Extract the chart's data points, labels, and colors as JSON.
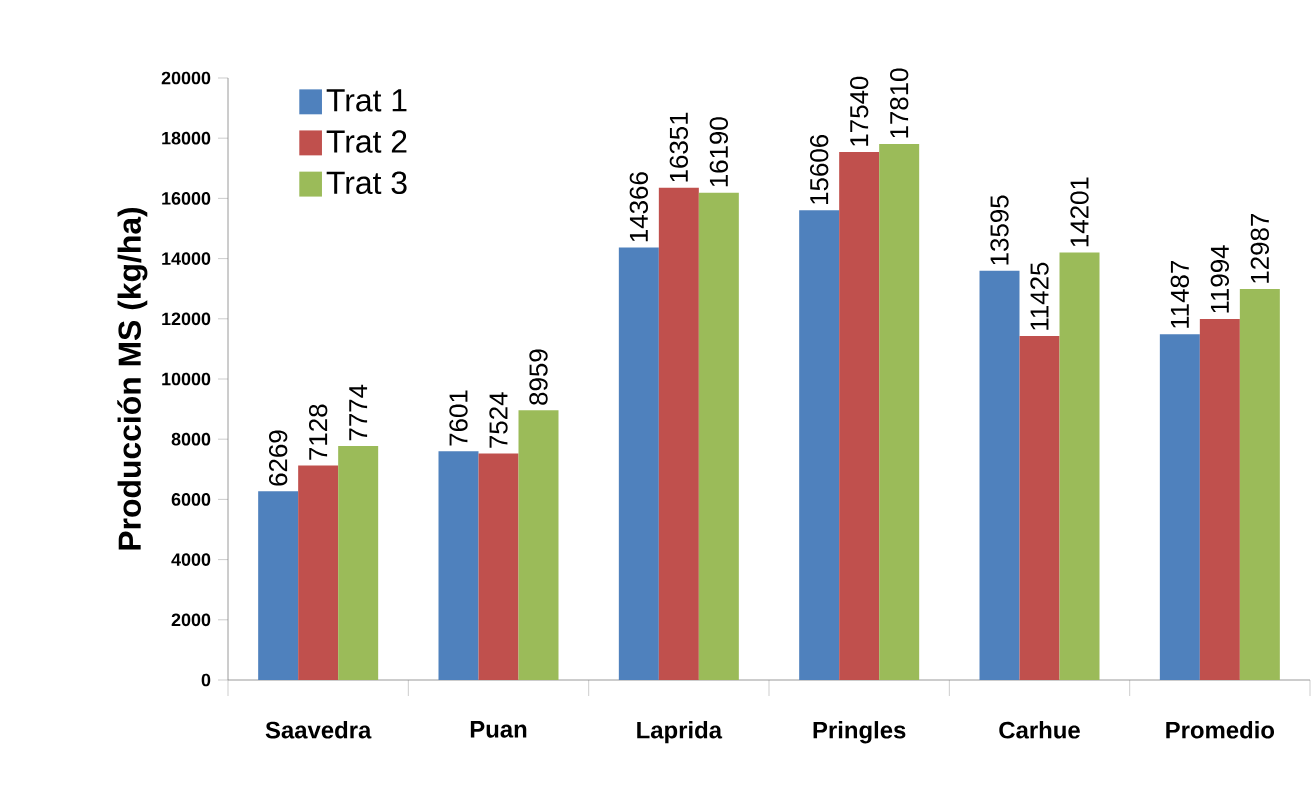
{
  "chart_data": {
    "type": "bar",
    "ylabel": "Producción MS (kg/ha)",
    "categories": [
      "Saavedra",
      "Puan",
      "Laprida",
      "Pringles",
      "Carhue",
      "Promedio"
    ],
    "series": [
      {
        "name": "Trat 1",
        "color": "#4f81bd",
        "values": [
          6269,
          7601,
          14366,
          15606,
          13595,
          11487
        ]
      },
      {
        "name": "Trat 2",
        "color": "#c0504d",
        "values": [
          7128,
          7524,
          16351,
          17540,
          11425,
          11994
        ]
      },
      {
        "name": "Trat 3",
        "color": "#9bbb59",
        "values": [
          7774,
          8959,
          16190,
          17810,
          14201,
          12987
        ]
      }
    ],
    "ylim": [
      0,
      20000
    ],
    "yticks": [
      0,
      2000,
      4000,
      6000,
      8000,
      10000,
      12000,
      14000,
      16000,
      18000,
      20000
    ],
    "data_labels": true,
    "legend": "top left",
    "grid": false
  }
}
